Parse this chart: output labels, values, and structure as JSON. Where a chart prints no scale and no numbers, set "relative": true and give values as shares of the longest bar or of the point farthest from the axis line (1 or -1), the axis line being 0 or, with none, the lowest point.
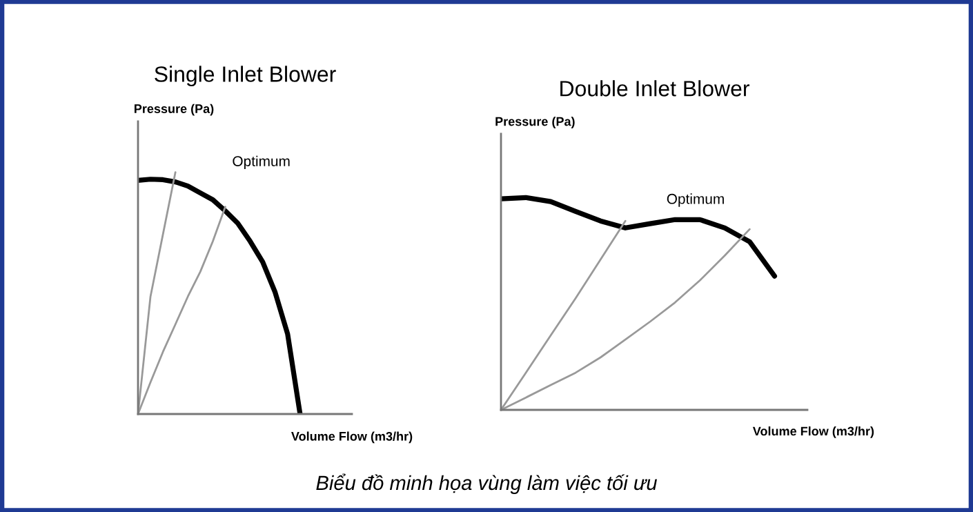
{
  "chart_data": [
    {
      "type": "line",
      "title": "Single Inlet Blower",
      "xlabel": "Volume Flow (m3/hr)",
      "ylabel": "Pressure (Pa)",
      "relative": true,
      "annotations": [
        "Optimum"
      ],
      "categories": [
        null,
        null,
        null,
        null,
        null,
        null,
        null,
        null,
        null,
        null,
        null,
        null,
        null,
        null
      ],
      "series": [
        {
          "color": "#000000",
          "values": [
            0.966,
            0.971,
            0.969,
            0.96,
            0.943,
            0.914,
            0.886,
            0.84,
            0.789,
            0.714,
            0.629,
            0.503,
            0.331,
            0
          ]
        },
        {
          "color": "#999999",
          "values": [
            0,
            0.486,
            0.743,
            1,
            null,
            null,
            null,
            null,
            null,
            null,
            null,
            null,
            null,
            null
          ]
        },
        {
          "color": "#999999",
          "values": [
            0,
            0.131,
            0.257,
            0.371,
            0.486,
            0.589,
            0.714,
            0.857,
            null,
            null,
            null,
            null,
            null,
            null
          ]
        }
      ]
    },
    {
      "type": "line",
      "title": "Double Inlet Blower",
      "xlabel": "Volume Flow (m3/hr)",
      "ylabel": "Pressure (Pa)",
      "relative": true,
      "annotations": [
        "Optimum",
        "Biểu đồ minh họa vùng làm việc tối ưu"
      ],
      "categories": [
        null,
        null,
        null,
        null,
        null,
        null,
        null,
        null,
        null,
        null,
        null,
        null
      ],
      "series": [
        {
          "color": "#000000",
          "values": [
            0.994,
            1,
            0.981,
            0.935,
            0.89,
            0.857,
            0.877,
            0.896,
            0.896,
            0.857,
            0.792,
            0.63
          ]
        },
        {
          "color": "#999999",
          "values": [
            0,
            0.175,
            0.351,
            0.526,
            0.708,
            0.89,
            null,
            null,
            null,
            null,
            null,
            null
          ]
        },
        {
          "color": "#999999",
          "values": [
            0,
            0.058,
            0.117,
            0.175,
            0.247,
            0.331,
            0.416,
            0.506,
            0.61,
            0.727,
            0.851,
            null
          ]
        }
      ]
    }
  ]
}
